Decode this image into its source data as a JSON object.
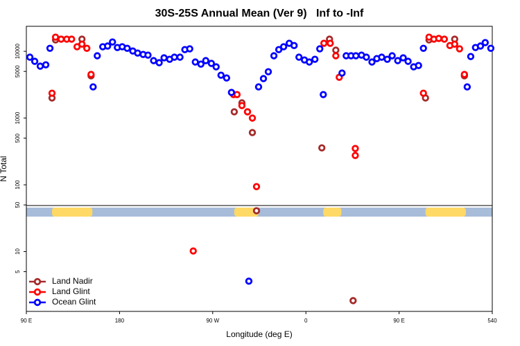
{
  "chart_data": {
    "type": "scatter",
    "title": "30S-25S Annual Mean (Ver 9)   Inf to -Inf",
    "x_label": "Longitude (deg E)",
    "y_label": "N Total",
    "log_y": true,
    "legend": "lower left",
    "xlim": [
      90,
      540
    ],
    "xticks": [
      {
        "value": 90,
        "label": "90 E"
      },
      180,
      {
        "value": 270,
        "label": "90 W"
      },
      {
        "value": 360,
        "label": "0"
      },
      {
        "value": 450,
        "label": "90 E"
      },
      540
    ],
    "ylim": [
      1.27,
      23700
    ],
    "yticks": [
      5,
      10,
      50,
      100,
      500,
      1000,
      5000,
      10000
    ],
    "land_bands": [
      [
        114.8,
        153.8
      ],
      [
        290.8,
        314.3
      ],
      [
        376.8,
        394.3
      ],
      [
        475.5,
        514.5
      ]
    ],
    "series": [
      {
        "name": "Land Nadir",
        "color": "#a52a2a",
        "x": [
          114.8,
          118.2,
          143.7,
          152.5,
          290.8,
          298.2,
          303.6,
          308.3,
          312.3,
          375.4,
          382.8,
          388.9,
          405.6,
          475.5,
          478.9,
          503.7,
          513.1
        ],
        "values": [
          2000,
          14800,
          15200,
          4290,
          1240,
          1690,
          1240,
          606,
          40.9,
          358,
          15200,
          10400,
          1.84,
          2000,
          14800,
          15200,
          4290
        ]
      },
      {
        "name": "Land Glint",
        "color": "#ff0000",
        "x": [
          114.8,
          118.2,
          123.6,
          129,
          133.7,
          139,
          143.7,
          148.4,
          152.5,
          251.2,
          290.1,
          293.5,
          298.2,
          303.6,
          308.3,
          312.3,
          377.4,
          383.5,
          388.9,
          392.2,
          407.7,
          407.7,
          473.5,
          478.9,
          483.6,
          488.3,
          493.7,
          499.1,
          503.7,
          508.4,
          513.1
        ],
        "values": [
          2360,
          16300,
          15200,
          15200,
          15200,
          11700,
          12800,
          11100,
          4500,
          10.2,
          2250,
          2250,
          1540,
          1240,
          1000,
          94,
          13200,
          13200,
          8570,
          4080,
          350,
          275,
          2360,
          16300,
          15200,
          15600,
          15200,
          12200,
          12800,
          10900,
          4500
        ]
      },
      {
        "name": "Ocean Glint",
        "color": "#0000ff",
        "x": [
          93.4,
          98.1,
          103.4,
          108.8,
          112.8,
          154.5,
          158.5,
          163.8,
          168.5,
          173.2,
          177.9,
          182.6,
          187.4,
          192.8,
          197.5,
          202.8,
          207.5,
          212.9,
          218.3,
          223,
          228.4,
          233,
          238.4,
          243.1,
          247.8,
          253.2,
          258.6,
          263.3,
          268.7,
          273.3,
          278,
          283.4,
          288.1,
          304.9,
          314.3,
          319,
          323.7,
          329.1,
          333.8,
          338.5,
          343.9,
          348.6,
          353.3,
          358.6,
          363.3,
          368.7,
          373.4,
          376.8,
          394.9,
          398.9,
          403.6,
          408.3,
          413.7,
          418.4,
          423.8,
          428.5,
          433.2,
          438.6,
          443.3,
          448.7,
          454,
          458.7,
          464.1,
          468.8,
          473.5,
          515.8,
          519.2,
          523.8,
          528.6,
          533.2,
          538.6
        ],
        "values": [
          8170,
          7080,
          5990,
          6280,
          11100,
          2930,
          8570,
          11700,
          12000,
          13800,
          11400,
          11700,
          11100,
          10100,
          9420,
          8980,
          8770,
          7250,
          6750,
          7980,
          7600,
          8170,
          8170,
          10600,
          10900,
          6910,
          6430,
          7250,
          6590,
          5850,
          4390,
          3990,
          2420,
          3.6,
          2930,
          3900,
          4940,
          8570,
          10600,
          11700,
          13200,
          12200,
          8170,
          7420,
          6910,
          7600,
          10900,
          2250,
          4720,
          8570,
          8570,
          8570,
          8770,
          8170,
          6910,
          7780,
          8170,
          7600,
          8570,
          7250,
          7980,
          7080,
          5850,
          6130,
          11100,
          2930,
          8360,
          11400,
          12000,
          13500,
          11100
        ]
      }
    ]
  }
}
